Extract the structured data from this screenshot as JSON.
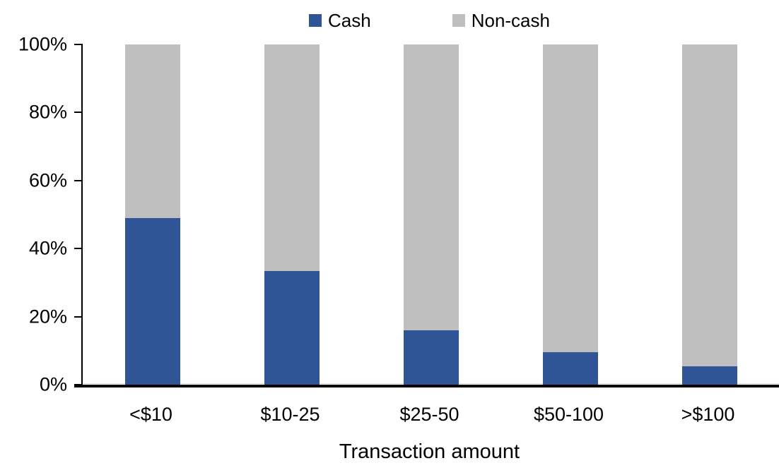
{
  "chart_data": {
    "type": "bar",
    "stacked": true,
    "orientation": "vertical",
    "title": "",
    "xlabel": "Transaction amount",
    "ylabel": "",
    "categories": [
      "<$10",
      "$10-25",
      "$25-50",
      "$50-100",
      ">$100"
    ],
    "series": [
      {
        "name": "Cash",
        "color": "#2F5597",
        "values": [
          49,
          33.5,
          16,
          9.5,
          5.5
        ]
      },
      {
        "name": "Non-cash",
        "color": "#BFBFBF",
        "values": [
          51,
          66.5,
          84,
          90.5,
          94.5
        ]
      }
    ],
    "ylim": [
      0,
      100
    ],
    "yticks": [
      0,
      20,
      40,
      60,
      80,
      100
    ],
    "ytick_labels": [
      "0%",
      "20%",
      "40%",
      "60%",
      "80%",
      "100%"
    ],
    "legend_position": "top",
    "grid": false,
    "colors": {
      "axis": "#000000",
      "baseline_hairline": "#D9D9D9",
      "background": "#FFFFFF"
    }
  }
}
